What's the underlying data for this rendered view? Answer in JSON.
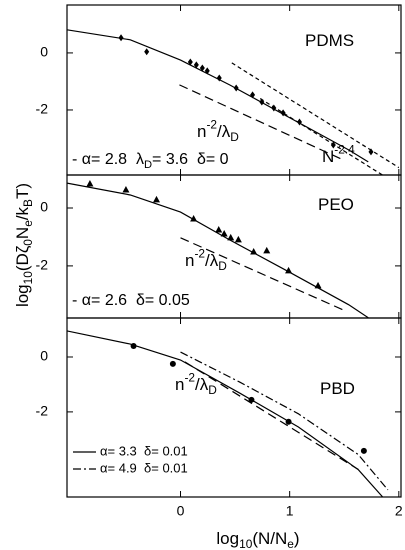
{
  "chart_data": [
    {
      "type": "line",
      "ylim": [
        -4.28,
        1.68
      ],
      "yticks": [
        0,
        -2
      ],
      "annotations": [
        {
          "parts": [
            {
              "text": "PDMS"
            }
          ]
        },
        {
          "parts": [
            {
              "text": "n"
            },
            {
              "text": "-2",
              "sup": true
            },
            {
              "text": "/λ"
            },
            {
              "text": "D",
              "sub": true
            }
          ]
        },
        {
          "parts": [
            {
              "text": "- α= 2.8  λ"
            },
            {
              "text": "D",
              "sub": true
            },
            {
              "text": "= 3.6  δ= 0"
            }
          ]
        },
        {
          "parts": [
            {
              "text": "N"
            },
            {
              "text": "-2.4",
              "sup": true
            }
          ]
        }
      ],
      "series": [
        {
          "style": "solid",
          "color": "#000",
          "x": [
            -1.04,
            -0.46,
            0,
            0.45,
            0.99,
            1.54,
            1.72
          ],
          "values": [
            0.81,
            0.46,
            -0.25,
            -1.12,
            -2.25,
            -3.4,
            -3.82
          ]
        },
        {
          "style": "dashed",
          "color": "#000",
          "x": [
            -0.01,
            1.49
          ],
          "values": [
            -1.12,
            -3.75
          ]
        },
        {
          "style": "dotted",
          "color": "#000",
          "x": [
            0.47,
            2.0
          ],
          "values": [
            -0.35,
            -4.02
          ]
        },
        {
          "style": "dotted",
          "color": "#000",
          "x": [
            0.73,
            1.85
          ],
          "values": [
            -1.6,
            -4.28
          ]
        },
        {
          "style": "markers",
          "marker": "diamond",
          "color": "#000",
          "x": [
            -0.545,
            -0.31,
            0.09,
            0.145,
            0.2,
            0.245,
            0.355,
            0.51,
            0.66,
            0.745,
            0.855,
            0.94,
            1.09,
            1.4,
            1.745
          ],
          "values": [
            0.53,
            0.04,
            -0.32,
            -0.42,
            -0.53,
            -0.63,
            -0.88,
            -1.23,
            -1.47,
            -1.72,
            -1.93,
            -2.1,
            -2.42,
            -3.23,
            -3.47
          ]
        }
      ]
    },
    {
      "type": "line",
      "ylim": [
        -3.8,
        1.14
      ],
      "yticks": [
        0,
        -2
      ],
      "ylabel": [
        {
          "text": "log"
        },
        {
          "text": "10",
          "sub": true
        },
        {
          "text": "(Dζ"
        },
        {
          "text": "0",
          "sub": true
        },
        {
          "text": "N"
        },
        {
          "text": "e",
          "sub": true
        },
        {
          "text": "/k"
        },
        {
          "text": "B",
          "sub": true
        },
        {
          "text": "T)"
        }
      ],
      "annotations": [
        {
          "parts": [
            {
              "text": "PEO"
            }
          ]
        },
        {
          "parts": [
            {
              "text": "n"
            },
            {
              "text": "-2",
              "sup": true
            },
            {
              "text": "/λ"
            },
            {
              "text": "D",
              "sub": true
            }
          ]
        },
        {
          "parts": [
            {
              "text": "- α= 2.6  δ= 0.05"
            }
          ]
        }
      ],
      "series": [
        {
          "style": "solid",
          "color": "#000",
          "x": [
            -1.04,
            -0.46,
            0,
            0.45,
            0.99,
            1.54,
            1.72
          ],
          "values": [
            0.86,
            0.45,
            -0.14,
            -1.1,
            -2.2,
            -3.34,
            -3.79
          ]
        },
        {
          "style": "dashed",
          "color": "#000",
          "x": [
            0,
            1.49
          ],
          "values": [
            -1.03,
            -3.52
          ]
        },
        {
          "style": "markers",
          "marker": "triangle",
          "color": "#000",
          "x": [
            -0.83,
            -0.5,
            -0.22,
            0.12,
            0.35,
            0.4,
            0.46,
            0.53,
            0.67,
            0.79,
            0.99,
            1.26
          ],
          "values": [
            0.83,
            0.62,
            0.28,
            -0.38,
            -0.76,
            -0.9,
            -1.03,
            -1.1,
            -1.52,
            -1.48,
            -2.17,
            -2.69
          ]
        }
      ]
    },
    {
      "type": "line",
      "xlim": [
        -1.04,
        2.02
      ],
      "ylim": [
        -5.1,
        1.42
      ],
      "xticks": [
        0,
        1,
        2
      ],
      "yticks": [
        0,
        -2
      ],
      "xlabel": [
        {
          "text": "log"
        },
        {
          "text": "10",
          "sub": true
        },
        {
          "text": "(N/N"
        },
        {
          "text": "e",
          "sub": true
        },
        {
          "text": ")"
        }
      ],
      "annotations": [
        {
          "parts": [
            {
              "text": "PBD"
            }
          ]
        },
        {
          "parts": [
            {
              "text": "n"
            },
            {
              "text": "-2",
              "sup": true
            },
            {
              "text": "/λ"
            },
            {
              "text": "D",
              "sub": true
            }
          ]
        }
      ],
      "series": [
        {
          "name": "α= 3.3  δ= 0.01",
          "style": "solid",
          "color": "#000",
          "x": [
            -1.04,
            -0.46,
            0,
            0.54,
            1.08,
            1.63,
            1.85
          ],
          "values": [
            0.95,
            0.47,
            -0.11,
            -1.31,
            -2.55,
            -4.11,
            -5.09
          ]
        },
        {
          "name": "α= 4.9  δ= 0.01",
          "style": "dashdot",
          "color": "#000",
          "x": [
            0,
            0.54,
            1.08,
            1.63,
            1.9
          ],
          "values": [
            0.18,
            -0.91,
            -2.07,
            -3.56,
            -4.84
          ]
        },
        {
          "style": "dashed",
          "color": "#000",
          "x": [
            0.04,
            1.63
          ],
          "values": [
            -0.18,
            -4.1
          ]
        },
        {
          "style": "markers",
          "marker": "circle",
          "color": "#000",
          "x": [
            -0.43,
            -0.07,
            0.65,
            0.99,
            1.68
          ],
          "values": [
            0.4,
            -0.25,
            -1.56,
            -2.36,
            -3.42
          ]
        }
      ]
    }
  ]
}
